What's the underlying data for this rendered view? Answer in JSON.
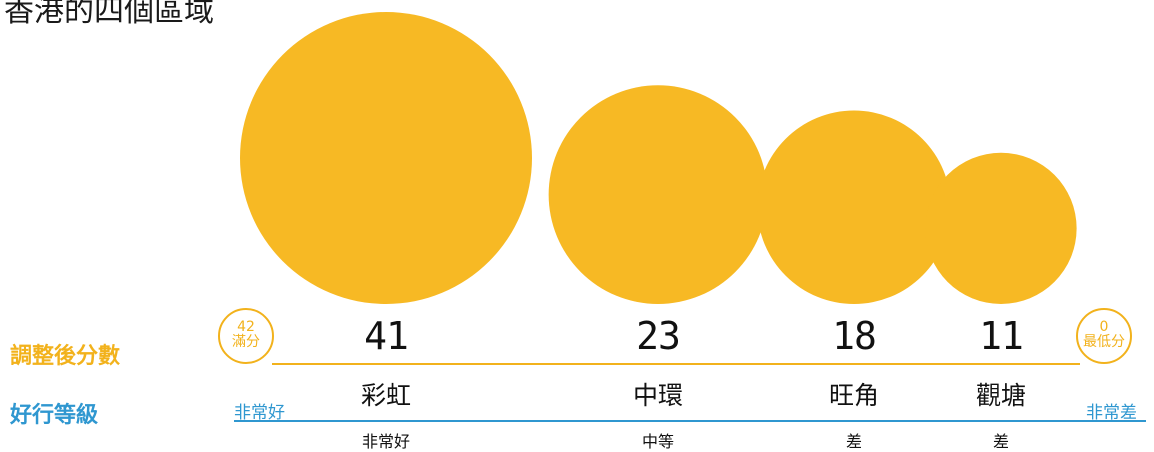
{
  "title": "香港的四個區域",
  "row_labels": {
    "score": "調整後分數",
    "rating": "好行等級"
  },
  "scale": {
    "max": {
      "value": "42",
      "label": "滿分",
      "rating": "非常好"
    },
    "min": {
      "value": "0",
      "label": "最低分",
      "rating": "非常差"
    }
  },
  "colors": {
    "bubble": "#F7B924",
    "score_line": "#F2B21C",
    "rating_line": "#2F97D0"
  },
  "chart_data": {
    "type": "bubble",
    "x_range": [
      0,
      42
    ],
    "x_direction": "descending",
    "points": [
      {
        "district": "彩虹",
        "score": 41,
        "rating": "非常好"
      },
      {
        "district": "中環",
        "score": 23,
        "rating": "中等"
      },
      {
        "district": "旺角",
        "score": 18,
        "rating": "差"
      },
      {
        "district": "觀塘",
        "score": 11,
        "rating": "差"
      }
    ]
  }
}
